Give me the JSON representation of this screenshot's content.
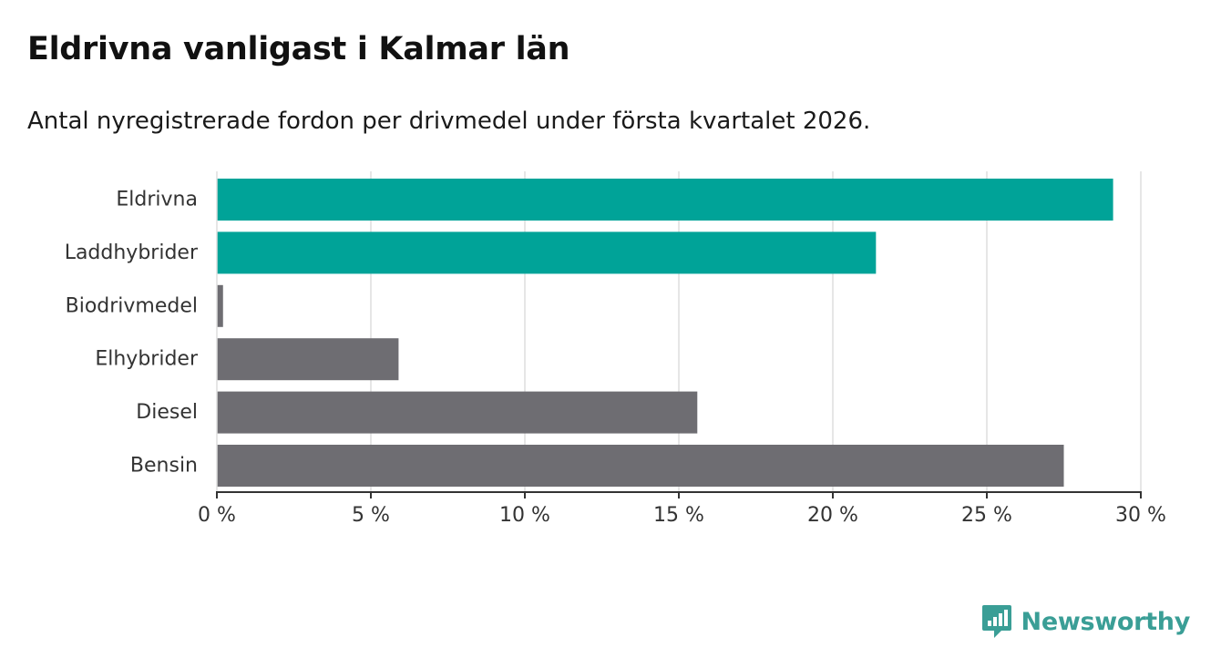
{
  "title": "Eldrivna vanligast i Kalmar län",
  "subtitle": "Antal nyregistrerade fordon per drivmedel under första kvartalet 2026.",
  "brand": {
    "name": "Newsworthy",
    "icon": "newsworthy-logo-icon",
    "color": "#3a9e96"
  },
  "colors": {
    "highlight": "#00a398",
    "default": "#6e6d72",
    "grid": "#dedede",
    "axis": "#333333"
  },
  "chart_data": {
    "type": "bar",
    "orientation": "horizontal",
    "categories": [
      "Eldrivna",
      "Laddhybrider",
      "Biodrivmedel",
      "Elhybrider",
      "Diesel",
      "Bensin"
    ],
    "values": [
      29.1,
      21.4,
      0.2,
      5.9,
      15.6,
      27.5
    ],
    "highlighted": [
      true,
      true,
      false,
      false,
      false,
      false
    ],
    "unit": "%",
    "xlim": [
      0,
      30
    ],
    "xticks": [
      0,
      5,
      10,
      15,
      20,
      25,
      30
    ],
    "xtick_labels": [
      "0 %",
      "5 %",
      "10 %",
      "15 %",
      "20 %",
      "25 %",
      "30 %"
    ],
    "grid": "vertical",
    "xlabel": "",
    "ylabel": ""
  }
}
